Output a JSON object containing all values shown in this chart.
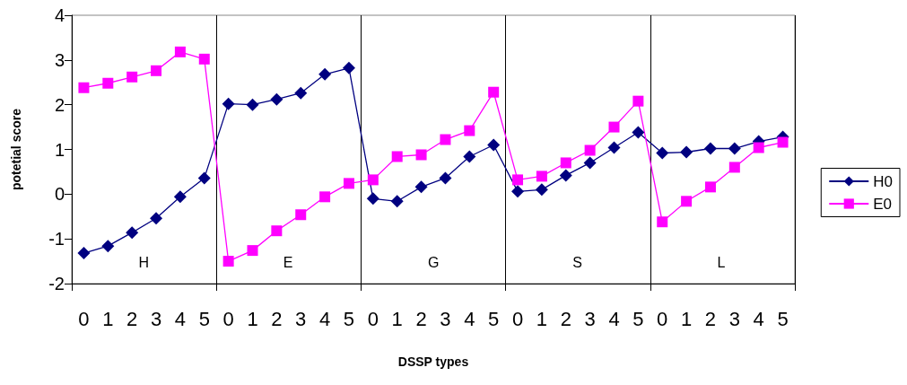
{
  "chart_data": {
    "type": "line",
    "xlabel": "DSSP types",
    "ylabel": "potetial score",
    "categories": [
      "0",
      "1",
      "2",
      "3",
      "4",
      "5",
      "0",
      "1",
      "2",
      "3",
      "4",
      "5",
      "0",
      "1",
      "2",
      "3",
      "4",
      "5",
      "0",
      "1",
      "2",
      "3",
      "4",
      "5",
      "0",
      "1",
      "2",
      "3",
      "4",
      "5"
    ],
    "series": [
      {
        "name": "H0",
        "color": "#000080",
        "marker": "diamond",
        "values": [
          -1.32,
          -1.16,
          -0.86,
          -0.54,
          -0.06,
          0.36,
          2.02,
          2.0,
          2.12,
          2.26,
          2.68,
          2.82,
          -0.1,
          -0.16,
          0.16,
          0.36,
          0.84,
          1.1,
          0.06,
          0.1,
          0.42,
          0.7,
          1.04,
          1.38,
          0.92,
          0.94,
          1.02,
          1.02,
          1.18,
          1.28
        ]
      },
      {
        "name": "E0",
        "color": "#ff00ff",
        "marker": "square",
        "values": [
          2.38,
          2.48,
          2.62,
          2.76,
          3.18,
          3.02,
          -1.5,
          -1.26,
          -0.82,
          -0.46,
          -0.06,
          0.24,
          0.32,
          0.84,
          0.88,
          1.22,
          1.42,
          2.28,
          0.32,
          0.4,
          0.7,
          0.98,
          1.5,
          2.08,
          -0.62,
          -0.16,
          0.16,
          0.6,
          1.04,
          1.16
        ]
      }
    ],
    "annotations": [
      "H",
      "E",
      "G",
      "S",
      "L"
    ],
    "ylim": [
      -2,
      4
    ],
    "yticks": [
      -2,
      -1,
      0,
      1,
      2,
      3,
      4
    ],
    "grid": "x",
    "legend": "right"
  }
}
